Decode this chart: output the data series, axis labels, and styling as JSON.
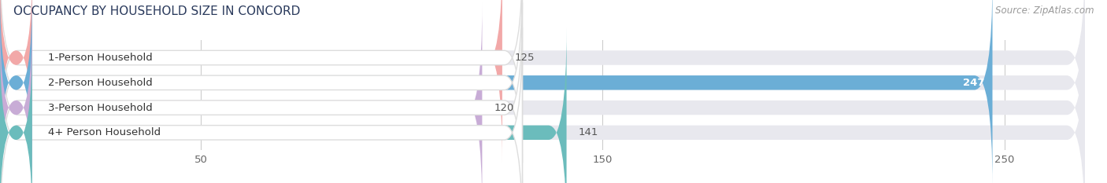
{
  "title": "OCCUPANCY BY HOUSEHOLD SIZE IN CONCORD",
  "source": "Source: ZipAtlas.com",
  "categories": [
    "1-Person Household",
    "2-Person Household",
    "3-Person Household",
    "4+ Person Household"
  ],
  "values": [
    125,
    247,
    120,
    141
  ],
  "bar_colors": [
    "#f2a8a8",
    "#6baed6",
    "#c8acd6",
    "#6bbcbc"
  ],
  "track_color": "#e8e8ee",
  "label_box_color": "#ffffff",
  "label_border_colors": [
    "#f2a8a8",
    "#6baed6",
    "#c8acd6",
    "#6bbcbc"
  ],
  "xlim": [
    0,
    270
  ],
  "xticks": [
    50,
    150,
    250
  ],
  "bar_height": 0.58,
  "label_fontsize": 9.5,
  "value_fontsize": 9.5,
  "title_fontsize": 11,
  "source_fontsize": 8.5,
  "background_color": "#ffffff",
  "title_color": "#2a3a5c",
  "tick_color": "#666666",
  "value_color": "#555555",
  "value_color_inside": "#ffffff",
  "label_text_color": "#333333"
}
